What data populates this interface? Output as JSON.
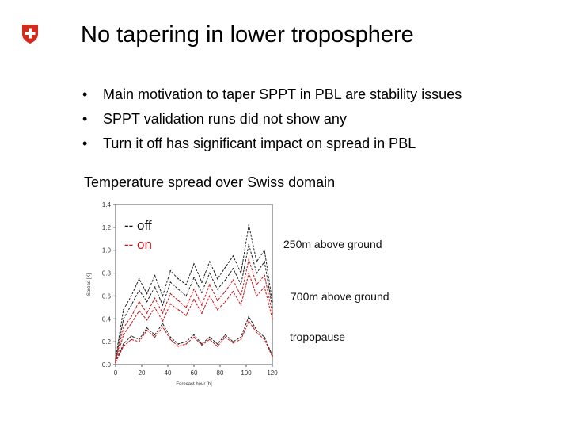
{
  "colors": {
    "logo_red": "#d52b1e",
    "series_off": "#222222",
    "series_on": "#c4161c"
  },
  "slide": {
    "logo_icon": "swiss-cross-icon",
    "title": "No tapering in lower troposphere",
    "bullets": [
      "Main motivation to taper SPPT in PBL are stability issues",
      "SPPT validation runs did not show any",
      "Turn it off has significant impact on spread in PBL"
    ],
    "bullet_glyph": "•",
    "subtitle": "Temperature spread over Swiss domain",
    "legend": {
      "off": "-- off",
      "on": "-- on"
    },
    "annotations": [
      "250m above ground",
      "700m above ground",
      "tropopause"
    ]
  },
  "chart_data": {
    "type": "line",
    "xlabel": "Forecast hour [h]",
    "ylabel": "Spread [K]",
    "xlim": [
      0,
      120
    ],
    "ylim": [
      0,
      1.4
    ],
    "xticks": [
      0,
      20,
      40,
      60,
      80,
      100,
      120
    ],
    "yticks": [
      0.0,
      0.2,
      0.4,
      0.6,
      0.8,
      1.0,
      1.2,
      1.4
    ],
    "x": [
      0,
      6,
      12,
      18,
      24,
      30,
      36,
      42,
      48,
      54,
      60,
      66,
      72,
      78,
      84,
      90,
      96,
      102,
      108,
      114,
      120
    ],
    "series": [
      {
        "name": "off 250m",
        "group": "off",
        "values": [
          0.05,
          0.48,
          0.6,
          0.75,
          0.62,
          0.78,
          0.6,
          0.82,
          0.75,
          0.7,
          0.88,
          0.72,
          0.9,
          0.75,
          0.85,
          0.95,
          0.8,
          1.22,
          0.9,
          1.0,
          0.55
        ]
      },
      {
        "name": "off 700m",
        "group": "off",
        "values": [
          0.03,
          0.4,
          0.52,
          0.65,
          0.55,
          0.68,
          0.52,
          0.72,
          0.66,
          0.6,
          0.76,
          0.63,
          0.8,
          0.66,
          0.74,
          0.84,
          0.7,
          1.05,
          0.8,
          0.9,
          0.5
        ]
      },
      {
        "name": "on 250m",
        "group": "on",
        "values": [
          0.04,
          0.32,
          0.42,
          0.55,
          0.45,
          0.58,
          0.45,
          0.62,
          0.56,
          0.5,
          0.66,
          0.52,
          0.7,
          0.56,
          0.64,
          0.74,
          0.6,
          0.92,
          0.7,
          0.78,
          0.45
        ]
      },
      {
        "name": "on 700m",
        "group": "on",
        "values": [
          0.02,
          0.26,
          0.36,
          0.47,
          0.39,
          0.5,
          0.38,
          0.53,
          0.48,
          0.43,
          0.57,
          0.45,
          0.6,
          0.48,
          0.55,
          0.64,
          0.52,
          0.8,
          0.6,
          0.68,
          0.4
        ]
      },
      {
        "name": "off tropopause",
        "group": "off",
        "values": [
          0.02,
          0.18,
          0.25,
          0.22,
          0.32,
          0.26,
          0.36,
          0.24,
          0.18,
          0.2,
          0.26,
          0.18,
          0.24,
          0.18,
          0.26,
          0.2,
          0.24,
          0.42,
          0.3,
          0.24,
          0.08
        ]
      },
      {
        "name": "on tropopause",
        "group": "on",
        "values": [
          0.02,
          0.16,
          0.22,
          0.2,
          0.3,
          0.24,
          0.33,
          0.22,
          0.16,
          0.18,
          0.24,
          0.17,
          0.22,
          0.16,
          0.24,
          0.19,
          0.22,
          0.38,
          0.28,
          0.22,
          0.07
        ]
      }
    ]
  }
}
